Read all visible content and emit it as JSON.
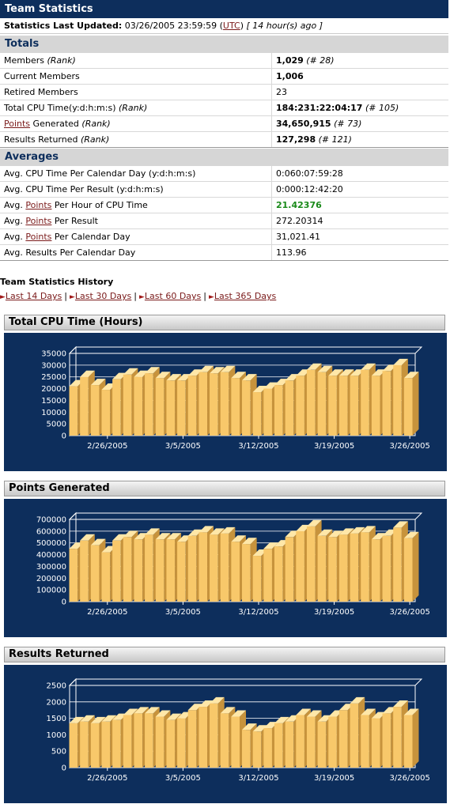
{
  "header": {
    "title": "Team Statistics"
  },
  "updated": {
    "label": "Statistics Last Updated:",
    "datetime": "03/26/2005 23:59:59",
    "tz_open": "(",
    "tz": "UTC",
    "tz_close": ")",
    "ago": "[ 14 hour(s) ago ]"
  },
  "totals": {
    "title": "Totals",
    "rows": [
      {
        "label": "Members ",
        "label_em": "(Rank)",
        "value": "1,029",
        "rank": "(# 28)"
      },
      {
        "label": "Current Members",
        "label_em": "",
        "value": "1,006",
        "rank": ""
      },
      {
        "label": "Retired Members",
        "label_em": "",
        "value": "23",
        "rank": ""
      },
      {
        "label": "Total CPU Time(y:d:h:m:s) ",
        "label_em": "(Rank)",
        "value": "184:231:22:04:17",
        "rank": "(# 105)"
      },
      {
        "link": "Points",
        "label": " Generated ",
        "label_em": "(Rank)",
        "value": "34,650,915",
        "rank": "(# 73)"
      },
      {
        "label": "Results Returned ",
        "label_em": "(Rank)",
        "value": "127,298",
        "rank": "(# 121)"
      }
    ]
  },
  "averages": {
    "title": "Averages",
    "rows": [
      {
        "pre": "Avg. CPU Time Per Calendar Day (y:d:h:m:s)",
        "link": "",
        "post": "",
        "value": "0:060:07:59:28"
      },
      {
        "pre": "Avg. CPU Time Per Result (y:d:h:m:s)",
        "link": "",
        "post": "",
        "value": "0:000:12:42:20"
      },
      {
        "pre": "Avg. ",
        "link": "Points",
        "post": " Per Hour of CPU Time",
        "value": "21.42376"
      },
      {
        "pre": "Avg. ",
        "link": "Points",
        "post": " Per Result",
        "value": "272.20314"
      },
      {
        "pre": "Avg. ",
        "link": "Points",
        "post": " Per Calendar Day",
        "value": "31,021.41"
      },
      {
        "pre": "Avg. Results Per Calendar Day",
        "link": "",
        "post": "",
        "value": "113.96"
      }
    ]
  },
  "history": {
    "title": "Team Statistics History",
    "links": [
      "Last 14 Days",
      "Last 30 Days",
      "Last 60 Days",
      "Last 365 Days"
    ],
    "separator": "|"
  },
  "colors": {
    "navy": "#0d2e5c",
    "bar_front": "#f8c86a",
    "bar_top": "#ffe7a8",
    "bar_side": "#c7933c",
    "highlight_green": "#1a8a1a"
  },
  "chart_data": [
    {
      "type": "bar",
      "title": "Total CPU Time (Hours)",
      "ylim": [
        0,
        35000
      ],
      "yticks": [
        0,
        5000,
        10000,
        15000,
        20000,
        25000,
        30000,
        35000
      ],
      "xtick_labels": [
        "2/26/2005",
        "3/5/2005",
        "3/12/2005",
        "3/19/2005",
        "3/26/2005"
      ],
      "xtick_index": [
        3,
        10,
        17,
        24,
        31
      ],
      "x": [
        "2/23/2005",
        "2/24/2005",
        "2/25/2005",
        "2/26/2005",
        "2/27/2005",
        "2/28/2005",
        "3/1/2005",
        "3/2/2005",
        "3/3/2005",
        "3/4/2005",
        "3/5/2005",
        "3/6/2005",
        "3/7/2005",
        "3/8/2005",
        "3/9/2005",
        "3/10/2005",
        "3/11/2005",
        "3/12/2005",
        "3/13/2005",
        "3/14/2005",
        "3/15/2005",
        "3/16/2005",
        "3/17/2005",
        "3/18/2005",
        "3/19/2005",
        "3/20/2005",
        "3/21/2005",
        "3/22/2005",
        "3/23/2005",
        "3/24/2005",
        "3/25/2005",
        "3/26/2005"
      ],
      "values": [
        21000,
        25000,
        21500,
        19500,
        24000,
        26000,
        25000,
        26500,
        24500,
        23500,
        23500,
        25500,
        27000,
        26500,
        27000,
        24500,
        23500,
        18500,
        20000,
        21500,
        23500,
        25500,
        28000,
        27000,
        25500,
        25500,
        25500,
        28000,
        25500,
        27500,
        30000,
        24500
      ]
    },
    {
      "type": "bar",
      "title": "Points Generated",
      "ylim": [
        0,
        700000
      ],
      "yticks": [
        0,
        100000,
        200000,
        300000,
        400000,
        500000,
        600000,
        700000
      ],
      "xtick_labels": [
        "2/26/2005",
        "3/5/2005",
        "3/12/2005",
        "3/19/2005",
        "3/26/2005"
      ],
      "xtick_index": [
        3,
        10,
        17,
        24,
        31
      ],
      "x": [
        "2/23/2005",
        "2/24/2005",
        "2/25/2005",
        "2/26/2005",
        "2/27/2005",
        "2/28/2005",
        "3/1/2005",
        "3/2/2005",
        "3/3/2005",
        "3/4/2005",
        "3/5/2005",
        "3/6/2005",
        "3/7/2005",
        "3/8/2005",
        "3/9/2005",
        "3/10/2005",
        "3/11/2005",
        "3/12/2005",
        "3/13/2005",
        "3/14/2005",
        "3/15/2005",
        "3/16/2005",
        "3/17/2005",
        "3/18/2005",
        "3/19/2005",
        "3/20/2005",
        "3/21/2005",
        "3/22/2005",
        "3/23/2005",
        "3/24/2005",
        "3/25/2005",
        "3/26/2005"
      ],
      "values": [
        450000,
        520000,
        480000,
        420000,
        520000,
        550000,
        530000,
        570000,
        530000,
        530000,
        510000,
        560000,
        590000,
        570000,
        580000,
        510000,
        490000,
        390000,
        450000,
        470000,
        550000,
        600000,
        640000,
        560000,
        550000,
        570000,
        580000,
        590000,
        530000,
        560000,
        630000,
        540000
      ]
    },
    {
      "type": "bar",
      "title": "Results Returned",
      "ylim": [
        0,
        2500
      ],
      "yticks": [
        0,
        500,
        1000,
        1500,
        2000,
        2500
      ],
      "xtick_labels": [
        "2/26/2005",
        "3/5/2005",
        "3/12/2005",
        "3/19/2005",
        "3/26/2005"
      ],
      "xtick_index": [
        3,
        10,
        17,
        24,
        31
      ],
      "x": [
        "2/23/2005",
        "2/24/2005",
        "2/25/2005",
        "2/26/2005",
        "2/27/2005",
        "2/28/2005",
        "3/1/2005",
        "3/2/2005",
        "3/3/2005",
        "3/4/2005",
        "3/5/2005",
        "3/6/2005",
        "3/7/2005",
        "3/8/2005",
        "3/9/2005",
        "3/10/2005",
        "3/11/2005",
        "3/12/2005",
        "3/13/2005",
        "3/14/2005",
        "3/15/2005",
        "3/16/2005",
        "3/17/2005",
        "3/18/2005",
        "3/19/2005",
        "3/20/2005",
        "3/21/2005",
        "3/22/2005",
        "3/23/2005",
        "3/24/2005",
        "3/25/2005",
        "3/26/2005"
      ],
      "values": [
        1350,
        1400,
        1350,
        1400,
        1450,
        1600,
        1650,
        1650,
        1550,
        1450,
        1500,
        1750,
        1850,
        1950,
        1650,
        1550,
        1150,
        1100,
        1200,
        1350,
        1400,
        1600,
        1550,
        1400,
        1550,
        1750,
        1950,
        1600,
        1500,
        1650,
        1850,
        1600
      ]
    }
  ]
}
